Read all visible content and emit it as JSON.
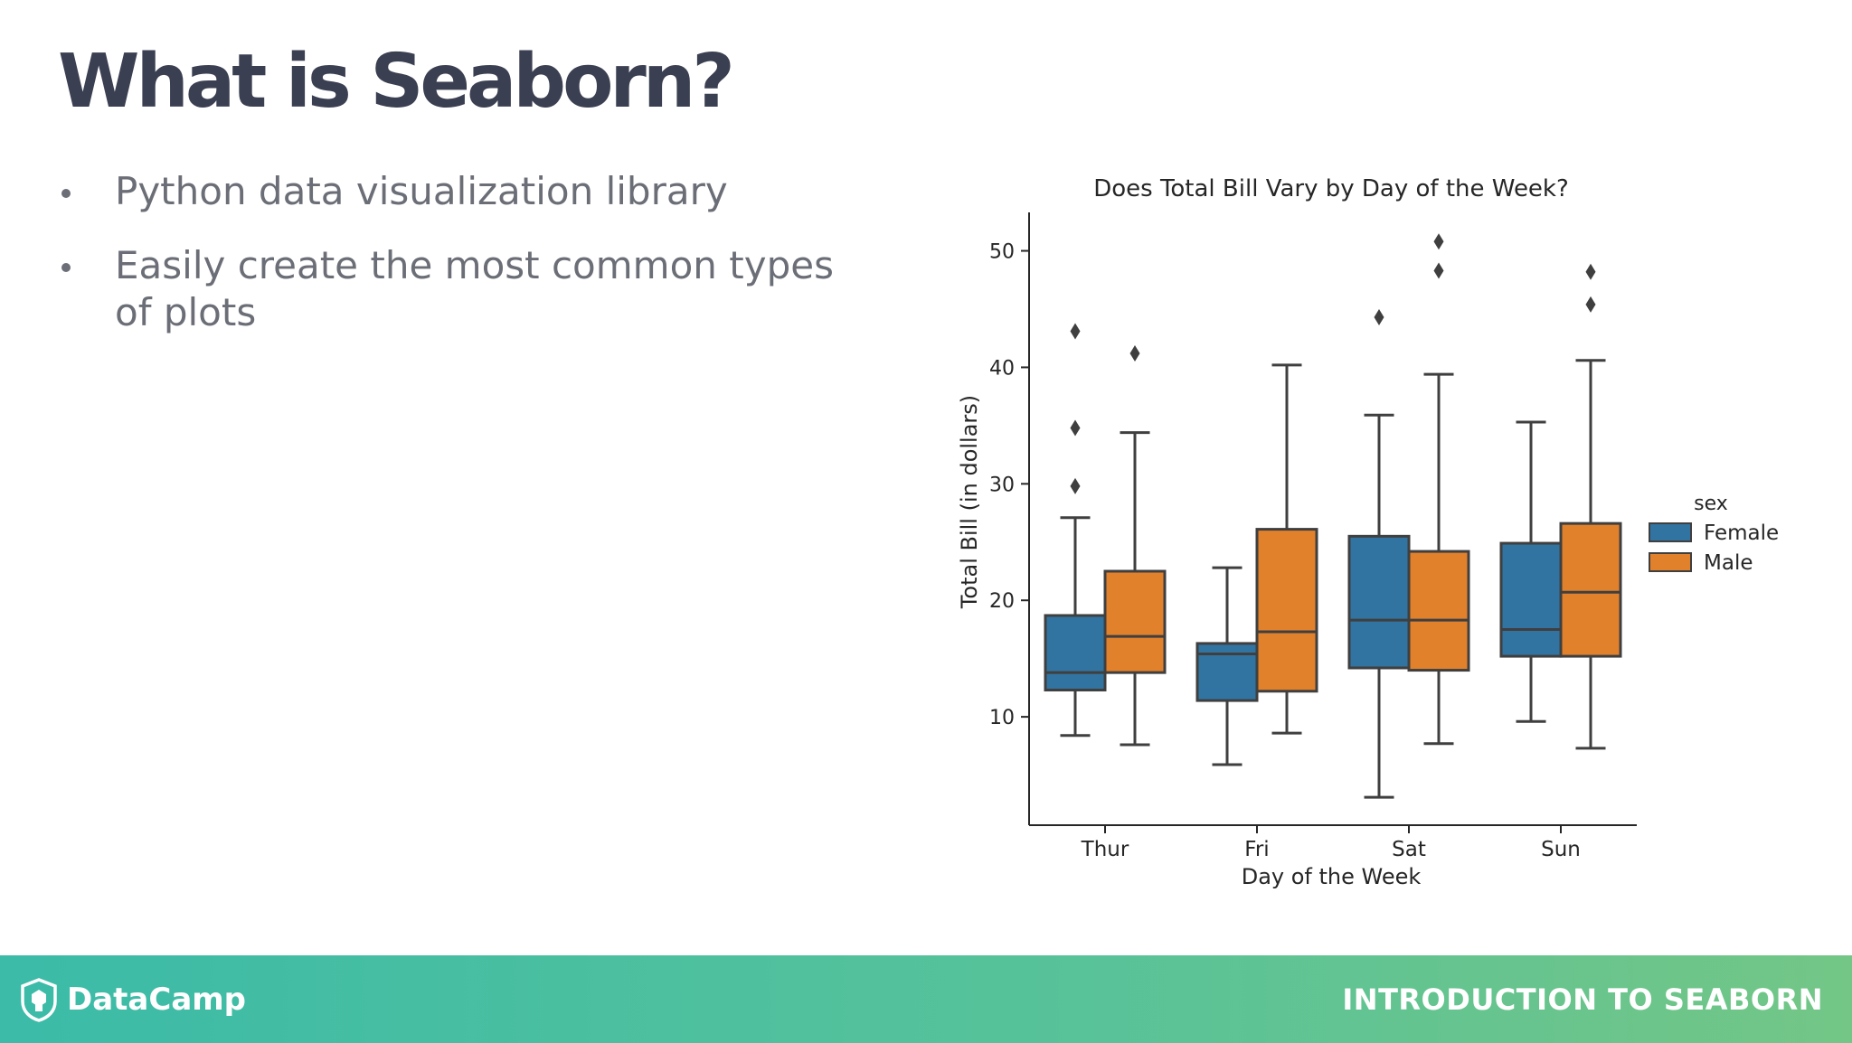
{
  "slide": {
    "title": "What is Seaborn?",
    "bullets": [
      {
        "text": "Python data visualization library"
      },
      {
        "text": "Easily create the most common types of plots"
      }
    ]
  },
  "footer": {
    "logo_text": "DataCamp",
    "course_title": "INTRODUCTION TO SEABORN",
    "logo_icon": "datacamp-shield-icon"
  },
  "colors": {
    "title": "#3a3f51",
    "text": "#6b6e76",
    "female": "#3274a1",
    "male": "#e1812c",
    "box_line": "#3f3f3f",
    "footer_start": "#3bbba8",
    "footer_end": "#73c686"
  },
  "chart_data": {
    "type": "box",
    "title": "Does Total Bill Vary by Day of the Week?",
    "xlabel": "Day of the Week",
    "ylabel": "Total Bill (in dollars)",
    "categories": [
      "Thur",
      "Fri",
      "Sat",
      "Sun"
    ],
    "yticks": [
      10,
      20,
      30,
      40,
      50
    ],
    "ylim": [
      0.7,
      53.3
    ],
    "grid": false,
    "legend": {
      "title": "sex",
      "position": "right"
    },
    "series": [
      {
        "name": "Female",
        "color": "#3274a1",
        "boxes": [
          {
            "q1": 12.3,
            "median": 13.8,
            "q3": 18.7,
            "whisker_low": 8.4,
            "whisker_high": 27.1,
            "outliers": [
              29.8,
              34.8,
              43.1
            ]
          },
          {
            "q1": 11.4,
            "median": 15.4,
            "q3": 16.3,
            "whisker_low": 5.9,
            "whisker_high": 22.8,
            "outliers": []
          },
          {
            "q1": 14.2,
            "median": 18.3,
            "q3": 25.5,
            "whisker_low": 3.1,
            "whisker_high": 35.9,
            "outliers": [
              44.3
            ]
          },
          {
            "q1": 15.2,
            "median": 17.5,
            "q3": 24.9,
            "whisker_low": 9.6,
            "whisker_high": 35.3,
            "outliers": []
          }
        ]
      },
      {
        "name": "Male",
        "color": "#e1812c",
        "boxes": [
          {
            "q1": 13.8,
            "median": 16.9,
            "q3": 22.5,
            "whisker_low": 7.6,
            "whisker_high": 34.4,
            "outliers": [
              41.2
            ]
          },
          {
            "q1": 12.2,
            "median": 17.3,
            "q3": 26.1,
            "whisker_low": 8.6,
            "whisker_high": 40.2,
            "outliers": []
          },
          {
            "q1": 14.0,
            "median": 18.3,
            "q3": 24.2,
            "whisker_low": 7.7,
            "whisker_high": 39.4,
            "outliers": [
              48.3,
              50.8
            ]
          },
          {
            "q1": 15.2,
            "median": 20.7,
            "q3": 26.6,
            "whisker_low": 7.3,
            "whisker_high": 40.6,
            "outliers": [
              45.4,
              48.2
            ]
          }
        ]
      }
    ]
  }
}
